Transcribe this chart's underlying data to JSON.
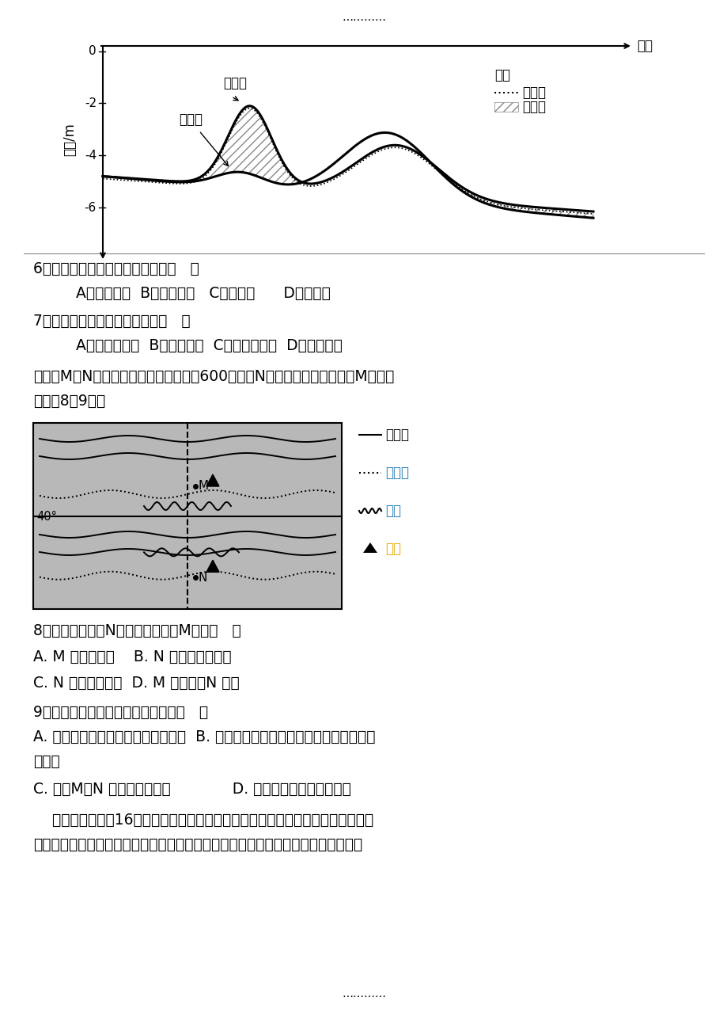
{
  "background_color": "#ffffff",
  "page_width": 9.2,
  "page_height": 12.74,
  "top_dots": "…………",
  "bottom_dots": "…………",
  "waihao_label": "外海",
  "ylabel": "水深/m",
  "yticks": [
    0,
    -2,
    -4,
    -6
  ],
  "label_jia": "甲时期",
  "label_yi": "乙时期",
  "legend_title": "图例",
  "legend_cu": "粗泥沙",
  "legend_xi": "细泥沙",
  "q6_text": "6．与乙时期相比，甲时期河口区（   ）",
  "q6_options": "    A．径流量大  B．来沙量少   C．盐度高      D．水位低",
  "q7_text": "7．由甲时期到乙时期，拦门沙（   ）",
  "q7_options": "    A．向外海推移  B．高度降低  C．外坡受侵蚀  D．体积不变",
  "context_text": "下图中M、N两地位于同一经线上，相距600千米，N地年太阳辐射总量少于M地。读",
  "context_text2": "图完戀8～9题。",
  "q8_text": "8．一年当中，当N地降水明显多于M地时（   ）",
  "q8_a": "A. M 地温和多雨    B. N 地受西北风影响",
  "q8_cd": "C. N 地受副高控制  D. M 地白昼比N 地长",
  "q9_text": "9．关于图示区域的说法，正确的是（   ）",
  "q9_ab": "A. 图中山脉的形成与太平洋板块有关  B. 图中陆地上等温线发生弯曲，主要是受地",
  "q9_b2": "形影响",
  "q9_cd": "C. 图中M、N 附近自然带相同             D. 图中河流径流季节变化小",
  "tri_text1": "    三角贸易兴起于16世纪，因其主要商路连接成三角形，故称「三角贸易」（如下",
  "tri_text2": "图所示）。满载着货物的商船，从利物浦等欧洲港口「出程」；到达非洲后，用所载"
}
